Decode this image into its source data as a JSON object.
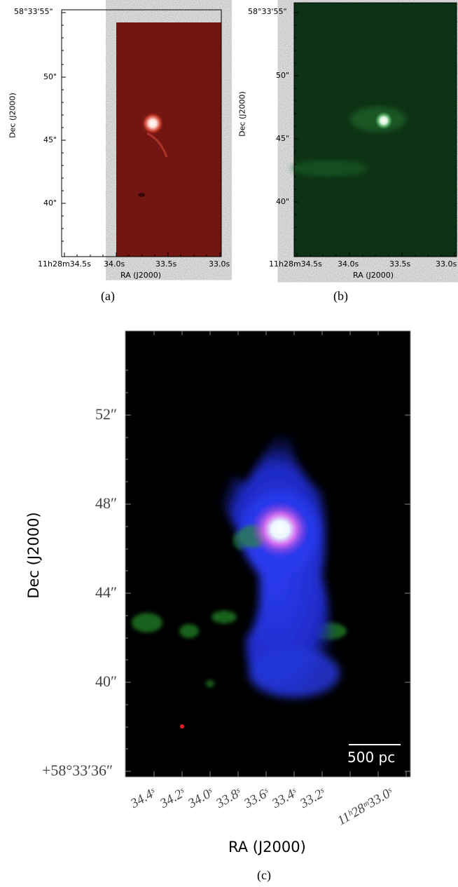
{
  "panel_a": {
    "ylabel": "Dec (J2000)",
    "xlabel": "RA (J2000)",
    "yticks": [
      "58°33'55\"",
      "50\"",
      "45\"",
      "40\""
    ],
    "xticks": [
      "11h28m34.5s",
      "34.0s",
      "33.5s",
      "33.0s"
    ],
    "caption": "(a)",
    "colormap_color": "#8b1a14"
  },
  "panel_b": {
    "ylabel": "Dec (J2000)",
    "xlabel": "RA (J2000)",
    "yticks": [
      "58°33'55\"",
      "50\"",
      "45\"",
      "40\""
    ],
    "xticks": [
      "11h28m34.5s",
      "34.0s",
      "33.5s",
      "33.0s"
    ],
    "caption": "(b)",
    "colormap_color": "#0f3d18"
  },
  "panel_c": {
    "ylabel": "Dec (J2000)",
    "xlabel": "RA (J2000)",
    "yticks": [
      "52″",
      "48″",
      "44″",
      "40″",
      "+58°33′36″"
    ],
    "xticks": [
      "34.4ˢ",
      "34.2ˢ",
      "34.0ˢ",
      "33.8ˢ",
      "33.6ˢ",
      "33.4ˢ",
      "33.2ˢ",
      "11ʰ28ᵐ33.0ˢ"
    ],
    "scalebar_label": "500 pc",
    "caption": "(c)"
  }
}
